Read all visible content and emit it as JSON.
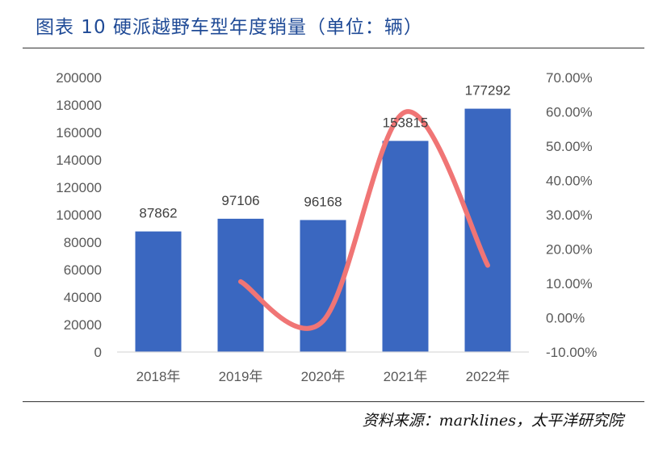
{
  "figure": {
    "title": "图表 10 硬派越野车型年度销量（单位：辆）",
    "source": "资料来源：marklines，太平洋研究院"
  },
  "chart_data": {
    "type": "bar",
    "categories": [
      "2018年",
      "2019年",
      "2020年",
      "2021年",
      "2022年"
    ],
    "series": [
      {
        "type": "bar",
        "axis": "left",
        "values": [
          87862,
          97106,
          96168,
          153815,
          177292
        ],
        "data_labels": [
          "87862",
          "97106",
          "96168",
          "153815",
          "177292"
        ],
        "color": "#3a67c0"
      },
      {
        "type": "line",
        "axis": "right",
        "smooth": true,
        "values": [
          null,
          0.1052,
          -0.0097,
          0.5995,
          0.1526
        ],
        "color": "#f07575"
      }
    ],
    "y_left": {
      "lim": [
        0,
        200000
      ],
      "ticks": [
        "0",
        "20000",
        "40000",
        "60000",
        "80000",
        "100000",
        "120000",
        "140000",
        "160000",
        "180000",
        "200000"
      ]
    },
    "y_right": {
      "lim": [
        -0.1,
        0.7
      ],
      "ticks": [
        "-10.00%",
        "0.00%",
        "10.00%",
        "20.00%",
        "30.00%",
        "40.00%",
        "50.00%",
        "60.00%",
        "70.00%"
      ]
    },
    "grid": false,
    "legend": "none"
  }
}
